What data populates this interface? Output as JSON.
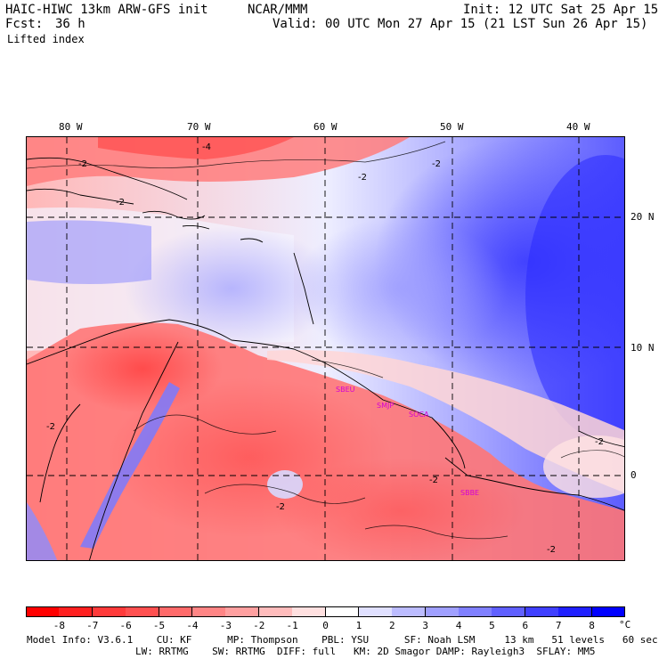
{
  "header": {
    "model": "HAIC-HIWC 13km ARW-GFS init",
    "center": "NCAR/MMM",
    "init": "Init: 12 UTC Sat 25 Apr 15",
    "fcst_label": "Fcst:",
    "fcst_value": "36 h",
    "valid": "Valid: 00 UTC Mon 27 Apr 15 (21 LST Sun 26 Apr 15)",
    "field": "Lifted index"
  },
  "map": {
    "lon_labels": [
      "80 W",
      "70 W",
      "60 W",
      "50 W",
      "40 W"
    ],
    "lat_labels": [
      "20 N",
      "10 N",
      "0"
    ],
    "stations": [
      "SBEU",
      "SMJP",
      "SOCA",
      "SBBE"
    ],
    "contour_labels": [
      "-2",
      "-4",
      "-2",
      "-2",
      "-2",
      "-2",
      "-2",
      "-2",
      "-2",
      "-2"
    ],
    "colors": {
      "neg_strong": "#ff1a1a",
      "neg_mid": "#ff7070",
      "neg_weak": "#ffc2c2",
      "pos_weak": "#c8c8ff",
      "pos_mid": "#7f7fff",
      "pos_strong": "#2828ff"
    }
  },
  "colorbar": {
    "labels": [
      "-8",
      "-7",
      "-6",
      "-5",
      "-4",
      "-3",
      "-2",
      "-1",
      "0",
      "1",
      "2",
      "3",
      "4",
      "5",
      "6",
      "7",
      "8"
    ],
    "unit": "°C",
    "colors": [
      "#ff0000",
      "#ff2020",
      "#ff3a3a",
      "#ff5050",
      "#ff6a6a",
      "#ff8585",
      "#ffa0a0",
      "#ffbcbc",
      "#ffe0e0",
      "#ffffff",
      "#e0e0ff",
      "#bcbcff",
      "#a0a0ff",
      "#8080ff",
      "#6060ff",
      "#4040ff",
      "#2020ff",
      "#0000ff"
    ]
  },
  "model_info": {
    "line1": "Model Info: V3.6.1    CU: KF      MP: Thompson    PBL: YSU      SF: Noah LSM     13 km   51 levels   60 sec",
    "line2": "LW: RRTMG    SW: RRTMG  DIFF: full   KM: 2D Smagor DAMP: Rayleigh3  SFLAY: MM5"
  }
}
